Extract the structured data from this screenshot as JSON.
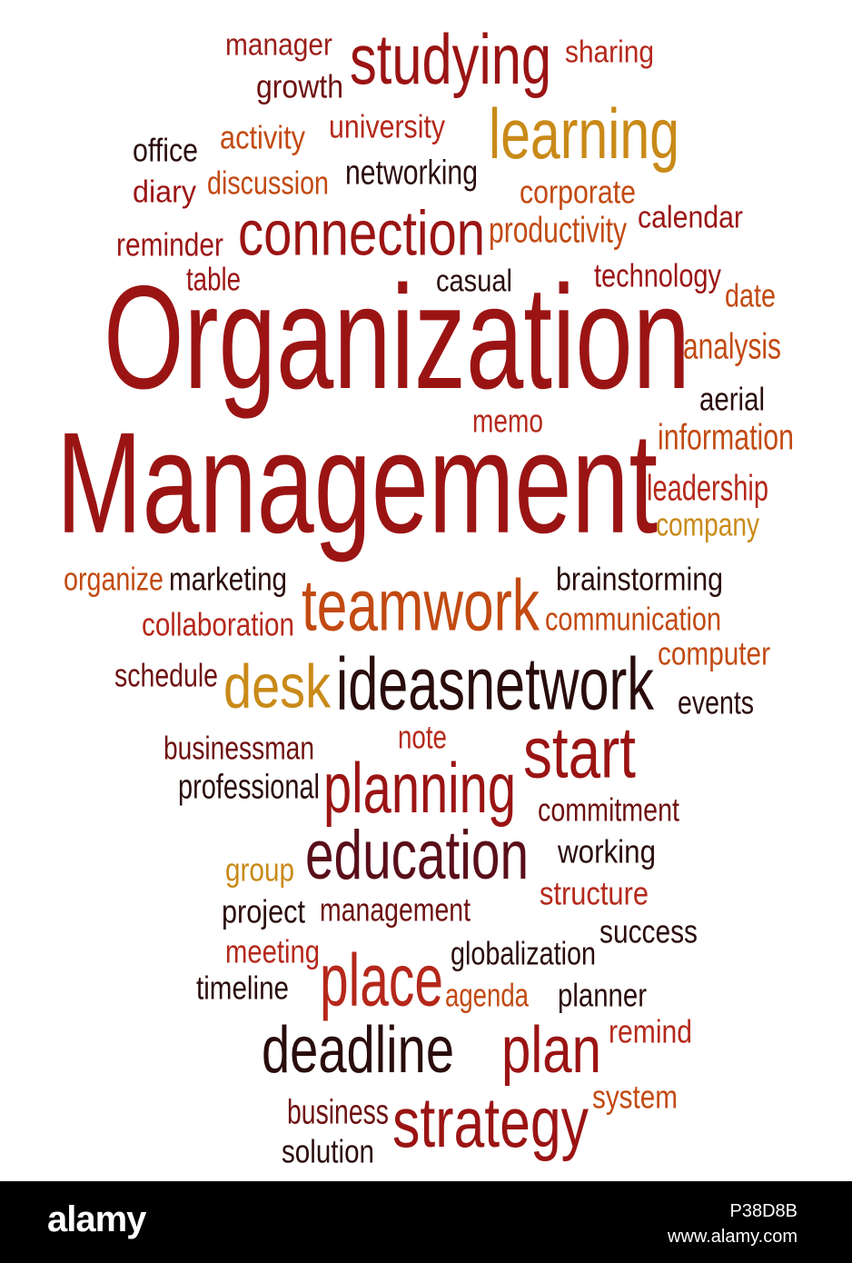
{
  "colors": {
    "dark_red": "#9b1414",
    "red": "#b5281b",
    "orange": "#c24a12",
    "gold": "#c98a18",
    "maroon": "#6e1010",
    "dark": "#2a0c0c",
    "footer_bg": "#000000"
  },
  "words": [
    {
      "text": "manager",
      "color": "#9b1e1a"
    },
    {
      "text": "studying",
      "color": "#9b1414"
    },
    {
      "text": "sharing",
      "color": "#b5281b"
    },
    {
      "text": "growth",
      "color": "#6e1010"
    },
    {
      "text": "learning",
      "color": "#c98a18"
    },
    {
      "text": "university",
      "color": "#b5281b"
    },
    {
      "text": "office",
      "color": "#2a0c0c"
    },
    {
      "text": "activity",
      "color": "#c24a12"
    },
    {
      "text": "networking",
      "color": "#2a0c0c"
    },
    {
      "text": "diary",
      "color": "#9b1414"
    },
    {
      "text": "discussion",
      "color": "#c24a12"
    },
    {
      "text": "corporate",
      "color": "#c24a12"
    },
    {
      "text": "calendar",
      "color": "#9b1414"
    },
    {
      "text": "connection",
      "color": "#9b1414"
    },
    {
      "text": "productivity",
      "color": "#c24a12"
    },
    {
      "text": "reminder",
      "color": "#9b1414"
    },
    {
      "text": "table",
      "color": "#9b1414"
    },
    {
      "text": "casual",
      "color": "#2a0c0c"
    },
    {
      "text": "technology",
      "color": "#9b1414"
    },
    {
      "text": "date",
      "color": "#c24a12"
    },
    {
      "text": "Organization",
      "color": "#9b1414"
    },
    {
      "text": "analysis",
      "color": "#c24a12"
    },
    {
      "text": "aerial",
      "color": "#2a0c0c"
    },
    {
      "text": "memo",
      "color": "#b5281b"
    },
    {
      "text": "information",
      "color": "#c24a12"
    },
    {
      "text": "Management",
      "color": "#9b1414"
    },
    {
      "text": "leadership",
      "color": "#b5281b"
    },
    {
      "text": "company",
      "color": "#c98a18"
    },
    {
      "text": "organize",
      "color": "#c24a12"
    },
    {
      "text": "marketing",
      "color": "#2a0c0c"
    },
    {
      "text": "brainstorming",
      "color": "#2a0c0c"
    },
    {
      "text": "teamwork",
      "color": "#c24a12"
    },
    {
      "text": "collaboration",
      "color": "#b5281b"
    },
    {
      "text": "communication",
      "color": "#c24a12"
    },
    {
      "text": "computer",
      "color": "#c24a12"
    },
    {
      "text": "schedule",
      "color": "#6e1010"
    },
    {
      "text": "desk",
      "color": "#c98a18"
    },
    {
      "text": "ideasnetwork",
      "color": "#2a0c0c"
    },
    {
      "text": "events",
      "color": "#2a0c0c"
    },
    {
      "text": "note",
      "color": "#b5281b"
    },
    {
      "text": "businessman",
      "color": "#6e1010"
    },
    {
      "text": "start",
      "color": "#9b1414"
    },
    {
      "text": "professional",
      "color": "#2a0c0c"
    },
    {
      "text": "planning",
      "color": "#9b1414"
    },
    {
      "text": "commitment",
      "color": "#6e1010"
    },
    {
      "text": "education",
      "color": "#5a0f1a"
    },
    {
      "text": "working",
      "color": "#2a0c0c"
    },
    {
      "text": "group",
      "color": "#c98a18"
    },
    {
      "text": "structure",
      "color": "#b5281b"
    },
    {
      "text": "project",
      "color": "#2a0c0c"
    },
    {
      "text": "management",
      "color": "#6e1010"
    },
    {
      "text": "success",
      "color": "#2a0c0c"
    },
    {
      "text": "meeting",
      "color": "#b5281b"
    },
    {
      "text": "globalization",
      "color": "#2a0c0c"
    },
    {
      "text": "place",
      "color": "#b5281b"
    },
    {
      "text": "timeline",
      "color": "#2a0c0c"
    },
    {
      "text": "agenda",
      "color": "#c24a12"
    },
    {
      "text": "planner",
      "color": "#2a0c0c"
    },
    {
      "text": "remind",
      "color": "#b5281b"
    },
    {
      "text": "deadline",
      "color": "#2a0c0c"
    },
    {
      "text": "plan",
      "color": "#9b1414"
    },
    {
      "text": "system",
      "color": "#c24a12"
    },
    {
      "text": "business",
      "color": "#6e1010"
    },
    {
      "text": "strategy",
      "color": "#9b1414"
    },
    {
      "text": "solution",
      "color": "#2a0c0c"
    }
  ],
  "footer": {
    "logo": "alamy",
    "image_id": "P38D8B",
    "site": "www.alamy.com"
  }
}
